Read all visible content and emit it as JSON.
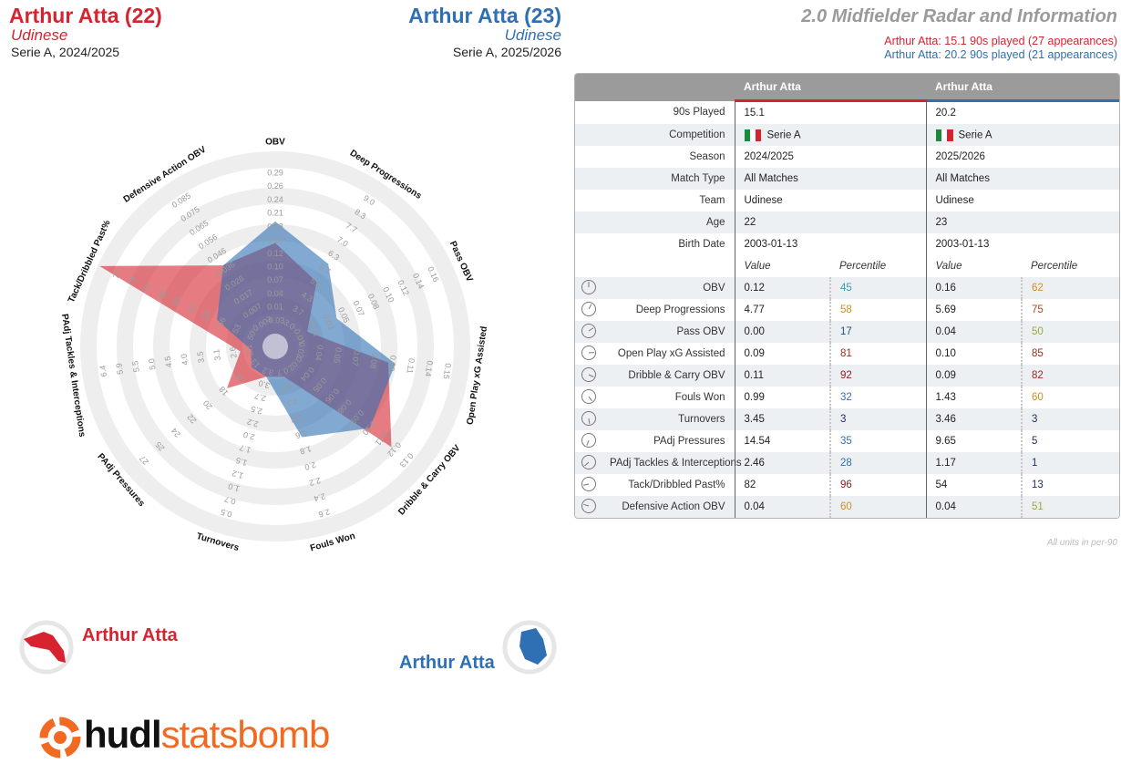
{
  "player1": {
    "header": "Arthur Atta (22)",
    "team": "Udinese",
    "competition_season": "Serie A, 2024/2025",
    "legend_name": "Arthur Atta",
    "color": "#d6232f"
  },
  "player2": {
    "header": "Arthur Atta (23)",
    "team": "Udinese",
    "competition_season": "Serie A, 2025/2026",
    "legend_name": "Arthur Atta",
    "color": "#2f6fb3"
  },
  "radar_title": "2.0 Midfielder Radar and Information",
  "sub1": "Arthur Atta: 15.1 90s played (27 appearances)",
  "sub2": "Arthur Atta: 20.2 90s played (21 appearances)",
  "chart_data": {
    "type": "radar",
    "series": [
      {
        "name": "Arthur Atta",
        "values": [
          0.12,
          4.77,
          0.0,
          0.09,
          0.11,
          0.99,
          3.45,
          14.54,
          2.46,
          82,
          0.04
        ]
      },
      {
        "name": "Arthur Atta",
        "values": [
          0.16,
          5.69,
          0.04,
          0.1,
          0.09,
          1.43,
          3.46,
          9.65,
          1.17,
          54,
          0.04
        ]
      }
    ],
    "axes": [
      {
        "label": "OBV",
        "ticks": [
          "-0.03",
          "0.01",
          "0.04",
          "0.07",
          "0.10",
          "0.12",
          "0.15",
          "0.18",
          "0.21",
          "0.24",
          "0.26",
          "0.29"
        ],
        "ticks_outer": [
          "0.29",
          "0.26",
          "0.24",
          "0.21",
          "0.18",
          "0.15",
          "0.12",
          "0.10",
          "0.07",
          "0.04",
          "0.01",
          "-0.03"
        ],
        "fracs": {
          "p1": 0.5,
          "p2": 0.62
        }
      },
      {
        "label": "Deep Progressions",
        "ticks": [
          "3.0",
          "3.7",
          "4.3",
          "5.0",
          "5.7",
          "6.3",
          "7.0",
          "7.7",
          "8.3",
          "9.0"
        ],
        "fracs": {
          "p1": 0.35,
          "p2": 0.47
        }
      },
      {
        "label": "Pass OBV",
        "ticks": [
          "-0.01",
          "0.01",
          "0.03",
          "0.05",
          "0.07",
          "0.08",
          "0.10",
          "0.12",
          "0.14",
          "0.16"
        ],
        "fracs": {
          "p1": 0.12,
          "p2": 0.3
        }
      },
      {
        "label": "Open Play xG Assisted",
        "ticks": [
          "0.02",
          "0.04",
          "0.05",
          "0.07",
          "0.08",
          "0.09",
          "0.11",
          "0.14",
          "0.15"
        ],
        "fracs": {
          "p1": 0.56,
          "p2": 0.6
        }
      },
      {
        "label": "Dribble & Carry OBV",
        "ticks": [
          "0.02",
          "0.04",
          "0.05",
          "0.06",
          "0.08",
          "0.09",
          "0.10",
          "0.11",
          "0.12",
          "0.13"
        ],
        "fracs": {
          "p1": 0.78,
          "p2": 0.62
        }
      },
      {
        "label": "Fouls Won",
        "ticks": [
          "0.7",
          "0.9",
          "1.1",
          "1.3",
          "1.6",
          "1.8",
          "2.0",
          "2.2",
          "2.4",
          "2.6"
        ],
        "fracs": {
          "p1": 0.1,
          "p2": 0.45
        }
      },
      {
        "label": "Turnovers",
        "ticks": [
          "3.2",
          "3.0",
          "2.7",
          "2.5",
          "2.2",
          "2.0",
          "1.7",
          "1.5",
          "1.2",
          "1.0",
          "0.7",
          "0.5"
        ],
        "fracs": {
          "p1": 0.1,
          "p2": 0.1
        }
      },
      {
        "label": "PAdj Pressures",
        "ticks": [
          "13",
          "16",
          "18",
          "20",
          "22",
          "24",
          "25",
          "27"
        ],
        "fracs": {
          "p1": 0.28,
          "p2": 0.1
        }
      },
      {
        "label": "PAdj Tackles & Interceptions",
        "ticks": [
          "2.1",
          "2.6",
          "3.1",
          "3.5",
          "4.0",
          "4.5",
          "5.0",
          "5.5",
          "5.9",
          "6.4"
        ],
        "fracs": {
          "p1": 0.12,
          "p2": 0.06
        }
      },
      {
        "label": "Tack/Dribbled Past%",
        "ticks": [
          "50",
          "53",
          "56",
          "59",
          "62",
          "65",
          "68",
          "71",
          "74",
          "77"
        ],
        "fracs": {
          "p1": 1.0,
          "p2": 0.28
        }
      },
      {
        "label": "Defensive Action OBV",
        "ticks": [
          "-0.003",
          "0.007",
          "0.017",
          "0.026",
          "0.036",
          "0.046",
          "0.056",
          "0.065",
          "0.075",
          "0.085"
        ],
        "fracs": {
          "p1": 0.46,
          "p2": 0.46
        }
      }
    ]
  },
  "table": {
    "col_player1": "Arthur Atta",
    "col_player2": "Arthur Atta",
    "info_rows": [
      {
        "label": "90s Played",
        "p1": "15.1",
        "p2": "20.2"
      },
      {
        "label": "Competition",
        "p1": "Serie A",
        "p2": "Serie A",
        "flag": true
      },
      {
        "label": "Season",
        "p1": "2024/2025",
        "p2": "2025/2026"
      },
      {
        "label": "Match Type",
        "p1": "All Matches",
        "p2": "All Matches"
      },
      {
        "label": "Team",
        "p1": "Udinese",
        "p2": "Udinese"
      },
      {
        "label": "Age",
        "p1": "22",
        "p2": "23"
      },
      {
        "label": "Birth Date",
        "p1": "2003-01-13",
        "p2": "2003-01-13"
      }
    ],
    "value_header": "Value",
    "percentile_header": "Percentile",
    "stat_rows": [
      {
        "label": "OBV",
        "v1": "0.12",
        "pc1": "45",
        "c1": "#3a9bb5",
        "v2": "0.16",
        "pc2": "62",
        "c2": "#d98a1a"
      },
      {
        "label": "Deep Progressions",
        "v1": "4.77",
        "pc1": "58",
        "c1": "#d98a1a",
        "v2": "5.69",
        "pc2": "75",
        "c2": "#b5441c"
      },
      {
        "label": "Pass OBV",
        "v1": "0.00",
        "pc1": "17",
        "c1": "#1f4f87",
        "v2": "0.04",
        "pc2": "50",
        "c2": "#9aaa3a"
      },
      {
        "label": "Open Play xG Assisted",
        "v1": "0.09",
        "pc1": "81",
        "c1": "#9c2a1a",
        "v2": "0.10",
        "pc2": "85",
        "c2": "#9c2a1a"
      },
      {
        "label": "Dribble & Carry OBV",
        "v1": "0.11",
        "pc1": "92",
        "c1": "#8c1a1a",
        "v2": "0.09",
        "pc2": "82",
        "c2": "#9c2a1a"
      },
      {
        "label": "Fouls Won",
        "v1": "0.99",
        "pc1": "32",
        "c1": "#2f6fb3",
        "v2": "1.43",
        "pc2": "60",
        "c2": "#d98a1a"
      },
      {
        "label": "Turnovers",
        "v1": "3.45",
        "pc1": "3",
        "c1": "#1f3060",
        "v2": "3.46",
        "pc2": "3",
        "c2": "#1f3060"
      },
      {
        "label": "PAdj Pressures",
        "v1": "14.54",
        "pc1": "35",
        "c1": "#2f6fb3",
        "v2": "9.65",
        "pc2": "5",
        "c2": "#1f3060"
      },
      {
        "label": "PAdj Tackles & Interceptions",
        "v1": "2.46",
        "pc1": "28",
        "c1": "#2f6fb3",
        "v2": "1.17",
        "pc2": "1",
        "c2": "#1f3060"
      },
      {
        "label": "Tack/Dribbled Past%",
        "v1": "82",
        "pc1": "96",
        "c1": "#8c1a1a",
        "v2": "54",
        "pc2": "13",
        "c2": "#1f3060"
      },
      {
        "label": "Defensive Action OBV",
        "v1": "0.04",
        "pc1": "60",
        "c1": "#d98a1a",
        "v2": "0.04",
        "pc2": "51",
        "c2": "#9aaa3a"
      }
    ]
  },
  "units_note": "All units in per-90",
  "logo": {
    "hudl": "hudl",
    "statsbomb": "statsbomb",
    "accent": "#f26a21"
  }
}
